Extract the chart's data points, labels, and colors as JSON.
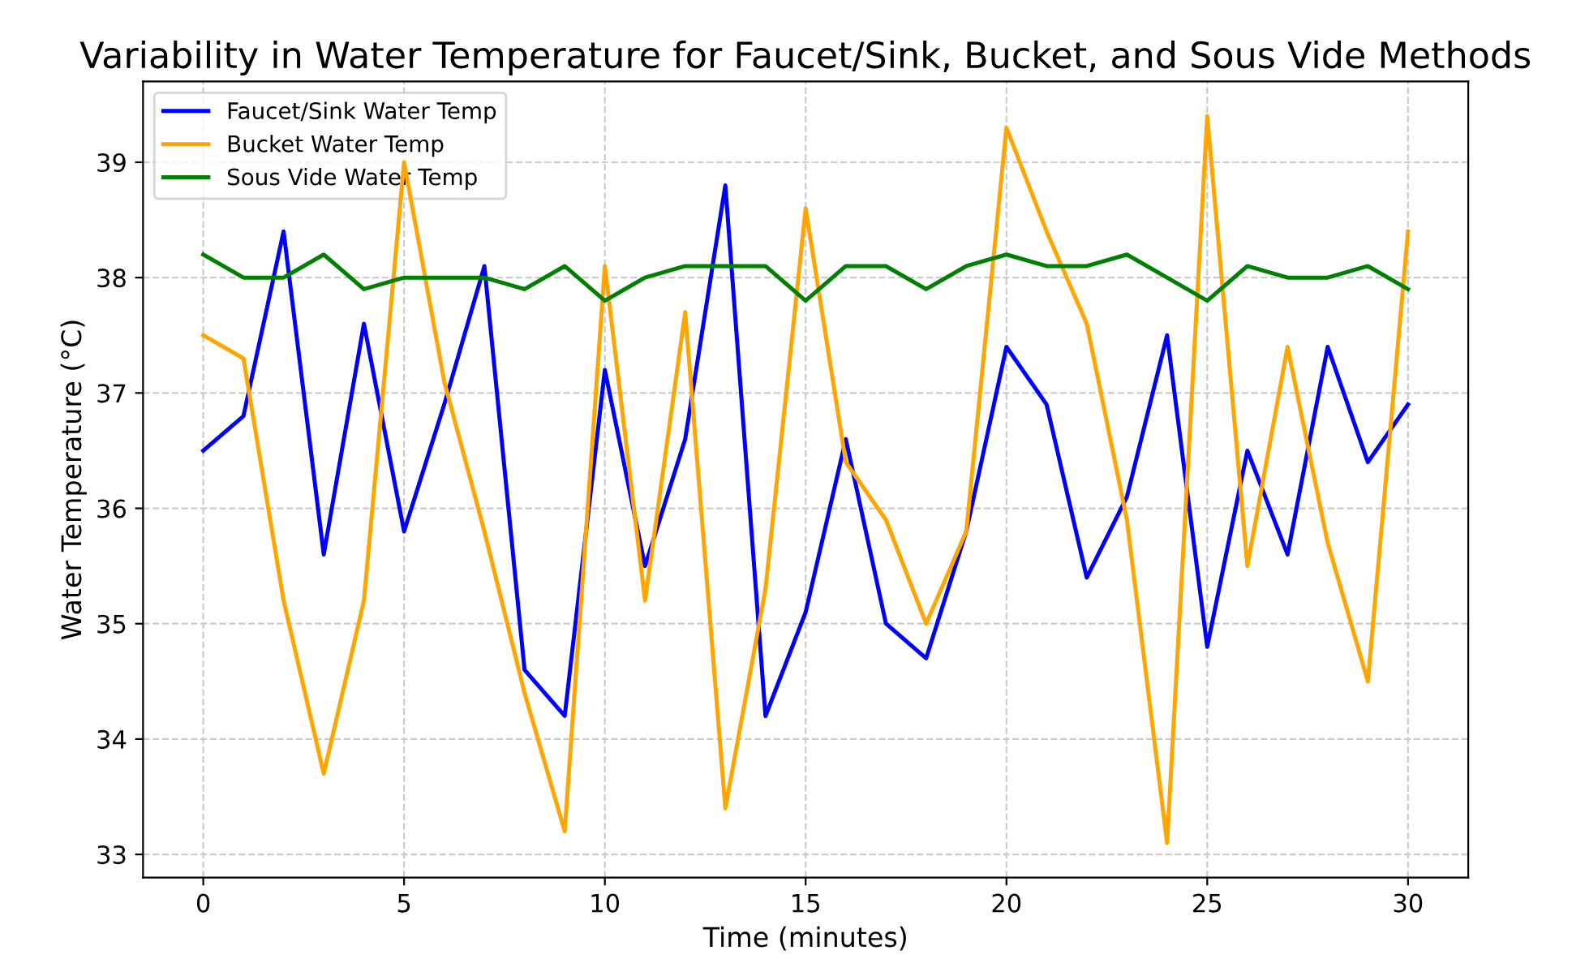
{
  "chart_data": {
    "type": "line",
    "title": "Variability in Water Temperature for Faucet/Sink, Bucket, and Sous Vide Methods",
    "xlabel": "Time (minutes)",
    "ylabel": "Water Temperature (°C)",
    "x": [
      0,
      1,
      2,
      3,
      4,
      5,
      6,
      7,
      8,
      9,
      10,
      11,
      12,
      13,
      14,
      15,
      16,
      17,
      18,
      19,
      20,
      21,
      22,
      23,
      24,
      25,
      26,
      27,
      28,
      29,
      30
    ],
    "series": [
      {
        "name": "Faucet/Sink Water Temp",
        "color": "#0000ff",
        "values": [
          36.5,
          36.8,
          38.4,
          35.6,
          37.6,
          35.8,
          36.9,
          38.1,
          34.6,
          34.2,
          37.2,
          35.5,
          36.6,
          38.8,
          34.2,
          35.1,
          36.6,
          35.0,
          34.7,
          35.8,
          37.4,
          36.9,
          35.4,
          36.1,
          37.5,
          34.8,
          36.5,
          35.6,
          37.4,
          36.4,
          36.9
        ]
      },
      {
        "name": "Bucket Water Temp",
        "color": "#ffa500",
        "values": [
          37.5,
          37.3,
          35.2,
          33.7,
          35.2,
          39.0,
          37.1,
          35.8,
          34.4,
          33.2,
          38.1,
          35.2,
          37.7,
          33.4,
          35.3,
          38.6,
          36.4,
          35.9,
          35.0,
          35.8,
          39.3,
          38.4,
          37.6,
          35.9,
          33.1,
          39.4,
          35.5,
          37.4,
          35.7,
          34.5,
          38.4
        ]
      },
      {
        "name": "Sous Vide Water Temp",
        "color": "#008000",
        "values": [
          38.2,
          38.0,
          38.0,
          38.2,
          37.9,
          38.0,
          38.0,
          38.0,
          37.9,
          38.1,
          37.8,
          38.0,
          38.1,
          38.1,
          38.1,
          37.8,
          38.1,
          38.1,
          37.9,
          38.1,
          38.2,
          38.1,
          38.1,
          38.2,
          38.0,
          37.8,
          38.1,
          38.0,
          38.0,
          38.1,
          37.9
        ]
      }
    ],
    "xlim": [
      -1.5,
      31.5
    ],
    "ylim": [
      32.8,
      39.7
    ],
    "xticks": [
      0,
      5,
      10,
      15,
      20,
      25,
      30
    ],
    "yticks": [
      33,
      34,
      35,
      36,
      37,
      38,
      39
    ],
    "grid": true,
    "legend": "top left",
    "marker": "none",
    "line_style": "solid"
  }
}
